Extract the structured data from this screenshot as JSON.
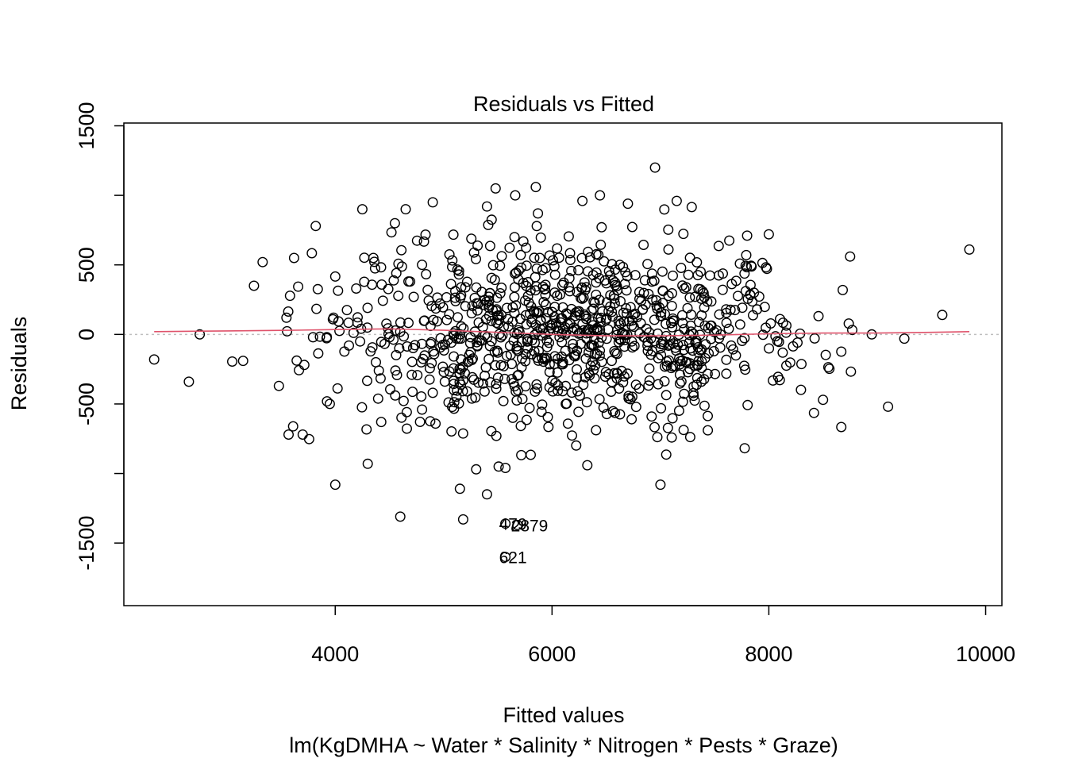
{
  "chart_data": {
    "type": "scatter",
    "title": "Residuals vs Fitted",
    "xlabel": "Fitted values",
    "ylabel": "Residuals",
    "subtitle": "lm(KgDMHA ~ Water * Salinity * Nitrogen * Pests * Graze)",
    "xlim": [
      2050,
      10150
    ],
    "ylim": [
      -1950,
      1520
    ],
    "x_ticks": [
      4000,
      6000,
      8000,
      10000
    ],
    "x_tick_labels": [
      "4000",
      "6000",
      "8000",
      "10000"
    ],
    "y_ticks": [
      -1500,
      -1000,
      -500,
      0,
      500,
      1000,
      1500
    ],
    "y_tick_labels": [
      "-1500",
      "",
      "-500",
      "0",
      "500",
      "",
      "1500"
    ],
    "reference_line_y": 0,
    "colors": {
      "points": "#000000",
      "smooth": "#DF536B",
      "reference": "#BEBEBE"
    },
    "point_marker": "open-circle",
    "n_points_approx": 1000,
    "points_sample": [
      {
        "x": 2330,
        "y": -180
      },
      {
        "x": 2650,
        "y": -340
      },
      {
        "x": 2750,
        "y": 0
      },
      {
        "x": 3050,
        "y": -195
      },
      {
        "x": 3150,
        "y": -190
      },
      {
        "x": 3250,
        "y": 350
      },
      {
        "x": 3330,
        "y": 520
      },
      {
        "x": 3480,
        "y": -370
      },
      {
        "x": 3550,
        "y": 120
      },
      {
        "x": 3570,
        "y": -720
      },
      {
        "x": 3620,
        "y": 550
      },
      {
        "x": 3700,
        "y": -720
      },
      {
        "x": 3820,
        "y": 780
      },
      {
        "x": 3950,
        "y": -500
      },
      {
        "x": 4000,
        "y": -1080
      },
      {
        "x": 4250,
        "y": 900
      },
      {
        "x": 4300,
        "y": -930
      },
      {
        "x": 4550,
        "y": 800
      },
      {
        "x": 4600,
        "y": -1310
      },
      {
        "x": 4650,
        "y": 900
      },
      {
        "x": 4900,
        "y": 950
      },
      {
        "x": 5150,
        "y": -1110
      },
      {
        "x": 5300,
        "y": -970
      },
      {
        "x": 5400,
        "y": 920
      },
      {
        "x": 5480,
        "y": 1050
      },
      {
        "x": 5570,
        "y": -960
      },
      {
        "x": 5850,
        "y": 1060
      },
      {
        "x": 5870,
        "y": 870
      },
      {
        "x": 6280,
        "y": 960
      },
      {
        "x": 6700,
        "y": 940
      },
      {
        "x": 6950,
        "y": 1200
      },
      {
        "x": 7000,
        "y": -1080
      },
      {
        "x": 7150,
        "y": 960
      },
      {
        "x": 7800,
        "y": 710
      },
      {
        "x": 8000,
        "y": 720
      },
      {
        "x": 8500,
        "y": -470
      },
      {
        "x": 8750,
        "y": 560
      },
      {
        "x": 8950,
        "y": 0
      },
      {
        "x": 9100,
        "y": -520
      },
      {
        "x": 9250,
        "y": -30
      },
      {
        "x": 9600,
        "y": 140
      },
      {
        "x": 9850,
        "y": 610
      },
      {
        "x": 5180,
        "y": -1330
      },
      {
        "x": 5400,
        "y": -1150
      },
      {
        "x": 5570,
        "y": -1360
      },
      {
        "x": 5680,
        "y": -1370
      },
      {
        "x": 5570,
        "y": -1600
      }
    ],
    "point_labels": [
      {
        "text": "2879",
        "x": 5680,
        "y": -1370
      },
      {
        "text": "479",
        "x": 5570,
        "y": -1360
      },
      {
        "text": "621",
        "x": 5570,
        "y": -1600
      }
    ],
    "smooth_line": {
      "x": [
        2330,
        3000,
        3600,
        4000,
        4500,
        5000,
        5500,
        6000,
        6500,
        7000,
        7500,
        8000,
        8500,
        9000,
        9500,
        9850
      ],
      "y": [
        20,
        25,
        30,
        35,
        40,
        30,
        15,
        0,
        -10,
        -10,
        -5,
        5,
        10,
        10,
        15,
        20
      ]
    }
  }
}
